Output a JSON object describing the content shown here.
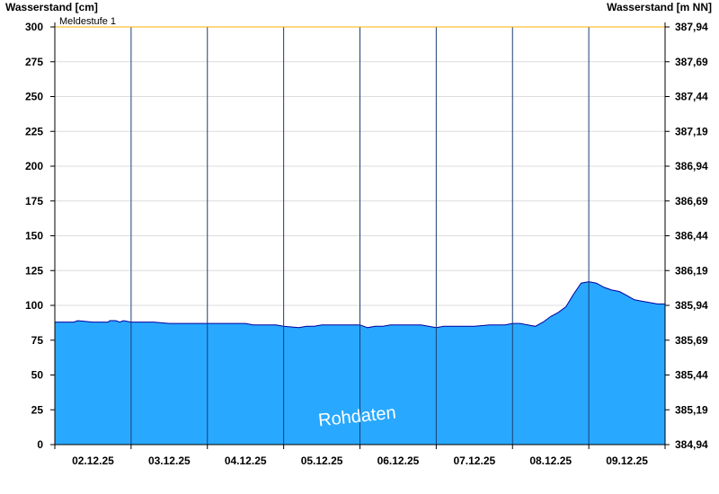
{
  "chart_data": {
    "type": "area",
    "ylabel_left": "Wasserstand [cm]",
    "ylabel_right": "Wasserstand [m NN]",
    "ylim": [
      0,
      300
    ],
    "yticks_left": [
      "0",
      "25",
      "50",
      "75",
      "100",
      "125",
      "150",
      "175",
      "200",
      "225",
      "250",
      "275",
      "300"
    ],
    "yticks_right": [
      "384,94",
      "385,19",
      "385,44",
      "385,69",
      "385,94",
      "386,19",
      "386,44",
      "386,69",
      "386,94",
      "387,19",
      "387,44",
      "387,69",
      "387,94"
    ],
    "xlim_days": [
      0,
      8
    ],
    "xtick_labels": [
      "02.12.25",
      "03.12.25",
      "04.12.25",
      "05.12.25",
      "06.12.25",
      "07.12.25",
      "08.12.25",
      "09.12.25"
    ],
    "threshold": {
      "label": "Meldestufe 1",
      "value": 300,
      "color": "#ffb000"
    },
    "watermark": "Rohdaten",
    "fill_color": "#29a8ff",
    "line_color": "#0000a0",
    "grid": true,
    "series": [
      {
        "x": [
          0,
          0.05,
          0.25,
          0.3,
          0.5,
          0.7,
          0.72,
          0.8,
          0.85,
          0.9,
          1.0,
          1.2,
          1.3,
          1.5,
          1.7,
          1.75,
          1.8,
          2.0,
          2.3,
          2.5,
          2.6,
          2.8,
          2.9,
          3.0,
          3.2,
          3.3,
          3.4,
          3.5,
          3.6,
          3.7,
          3.8,
          4.0,
          4.1,
          4.2,
          4.3,
          4.4,
          4.6,
          4.8,
          4.9,
          5.0,
          5.1,
          5.3,
          5.5,
          5.7,
          5.9,
          6.0,
          6.1,
          6.2,
          6.3,
          6.4,
          6.5,
          6.6,
          6.7,
          6.8,
          6.9,
          7.0,
          7.1,
          7.2,
          7.3,
          7.4,
          7.5,
          7.6,
          7.7,
          7.8,
          7.9,
          8.0
        ],
        "y": [
          88,
          88,
          88,
          89,
          88,
          88,
          89,
          89,
          88,
          89,
          88,
          88,
          88,
          87,
          87,
          87,
          87,
          87,
          87,
          87,
          86,
          86,
          86,
          85,
          84,
          85,
          85,
          86,
          86,
          86,
          86,
          86,
          84,
          85,
          85,
          86,
          86,
          86,
          85,
          84,
          85,
          85,
          85,
          86,
          86,
          87,
          87,
          86,
          85,
          88,
          92,
          95,
          99,
          108,
          116,
          117,
          116,
          113,
          111,
          110,
          107,
          104,
          103,
          102,
          101,
          101
        ]
      }
    ]
  }
}
